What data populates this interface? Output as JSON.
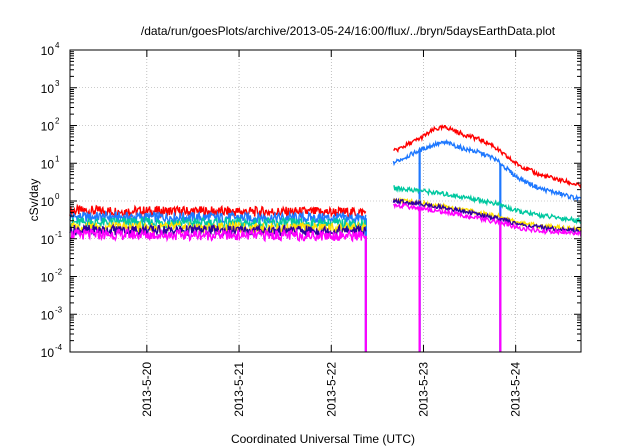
{
  "chart_data": {
    "type": "line",
    "title": "/data/run/goesPlots/archive/2013-05-24/16:00/flux/../bryn/5daysEarthData.plot",
    "xlabel": "Coordinated Universal Time (UTC)",
    "ylabel": "cSv/day",
    "y_scale": "log",
    "ylim": [
      0.0001,
      10000
    ],
    "y_ticks": [
      {
        "base": "10",
        "exp": "-4",
        "value": 0.0001
      },
      {
        "base": "10",
        "exp": "-3",
        "value": 0.001
      },
      {
        "base": "10",
        "exp": "-2",
        "value": 0.01
      },
      {
        "base": "10",
        "exp": "-1",
        "value": 0.1
      },
      {
        "base": "10",
        "exp": "0",
        "value": 1
      },
      {
        "base": "10",
        "exp": "1",
        "value": 10
      },
      {
        "base": "10",
        "exp": "2",
        "value": 100
      },
      {
        "base": "10",
        "exp": "3",
        "value": 1000
      },
      {
        "base": "10",
        "exp": "4",
        "value": 10000
      }
    ],
    "xlim": [
      "2013-05-19 04:00",
      "2013-05-24 17:00"
    ],
    "x_ticks": [
      {
        "label": "2013-5-20",
        "value": "2013-05-20"
      },
      {
        "label": "2013-5-21",
        "value": "2013-05-21"
      },
      {
        "label": "2013-5-22",
        "value": "2013-05-22"
      },
      {
        "label": "2013-5-23",
        "value": "2013-05-23"
      },
      {
        "label": "2013-5-24",
        "value": "2013-05-24"
      }
    ],
    "grid": true,
    "series": [
      {
        "color": "#ff0000",
        "x": [
          "2013-05-19 04:00",
          "2013-05-22 09:00",
          "2013-05-22 16:00",
          "2013-05-22 23:00",
          "2013-05-23 03:00",
          "2013-05-23 06:00",
          "2013-05-23 10:00",
          "2013-05-23 14:00",
          "2013-05-23 18:00",
          "2013-05-23 20:00",
          "2013-05-24 00:00",
          "2013-05-24 06:00",
          "2013-05-24 12:00",
          "2013-05-24 17:00"
        ],
        "y": [
          0.55,
          0.5,
          20,
          45,
          80,
          90,
          60,
          45,
          30,
          20,
          10,
          5,
          3.5,
          2.5
        ]
      },
      {
        "color": "#1e78ff",
        "x": [
          "2013-05-19 04:00",
          "2013-05-22 09:00",
          "2013-05-22 16:00",
          "2013-05-22 23:00",
          "2013-05-23 03:00",
          "2013-05-23 06:00",
          "2013-05-23 10:00",
          "2013-05-23 14:00",
          "2013-05-23 18:00",
          "2013-05-23 20:00",
          "2013-05-24 00:00",
          "2013-05-24 06:00",
          "2013-05-24 12:00",
          "2013-05-24 17:00"
        ],
        "y": [
          0.38,
          0.35,
          10,
          22,
          32,
          35,
          25,
          20,
          14,
          10,
          4.5,
          2.2,
          1.5,
          1.1
        ]
      },
      {
        "color": "#00c8a0",
        "x": [
          "2013-05-19 04:00",
          "2013-05-22 09:00",
          "2013-05-22 16:00",
          "2013-05-22 23:00",
          "2013-05-23 06:00",
          "2013-05-23 14:00",
          "2013-05-23 20:00",
          "2013-05-24 00:00",
          "2013-05-24 06:00",
          "2013-05-24 12:00",
          "2013-05-24 17:00"
        ],
        "y": [
          0.27,
          0.25,
          2.2,
          1.9,
          1.5,
          1.1,
          0.8,
          0.55,
          0.42,
          0.35,
          0.3
        ]
      },
      {
        "color": "#ffe000",
        "x": [
          "2013-05-19 04:00",
          "2013-05-22 09:00",
          "2013-05-22 16:00",
          "2013-05-22 23:00",
          "2013-05-23 06:00",
          "2013-05-23 14:00",
          "2013-05-23 20:00",
          "2013-05-24 00:00",
          "2013-05-24 06:00",
          "2013-05-24 17:00"
        ],
        "y": [
          0.2,
          0.19,
          1.1,
          0.9,
          0.7,
          0.5,
          0.38,
          0.28,
          0.22,
          0.18
        ]
      },
      {
        "color": "#3000a0",
        "x": [
          "2013-05-19 04:00",
          "2013-05-22 09:00",
          "2013-05-22 16:00",
          "2013-05-22 23:00",
          "2013-05-23 06:00",
          "2013-05-23 14:00",
          "2013-05-23 20:00",
          "2013-05-24 00:00",
          "2013-05-24 06:00",
          "2013-05-24 17:00"
        ],
        "y": [
          0.17,
          0.16,
          1.0,
          0.85,
          0.65,
          0.45,
          0.33,
          0.25,
          0.2,
          0.16
        ]
      },
      {
        "color": "#ff00ff",
        "x": [
          "2013-05-19 04:00",
          "2013-05-22 09:00",
          "2013-05-22 16:00",
          "2013-05-22 23:00",
          "2013-05-23 06:00",
          "2013-05-23 14:00",
          "2013-05-23 20:00",
          "2013-05-24 00:00",
          "2013-05-24 06:00",
          "2013-05-24 17:00"
        ],
        "y": [
          0.13,
          0.12,
          0.8,
          0.65,
          0.5,
          0.35,
          0.27,
          0.2,
          0.16,
          0.14
        ]
      }
    ]
  }
}
